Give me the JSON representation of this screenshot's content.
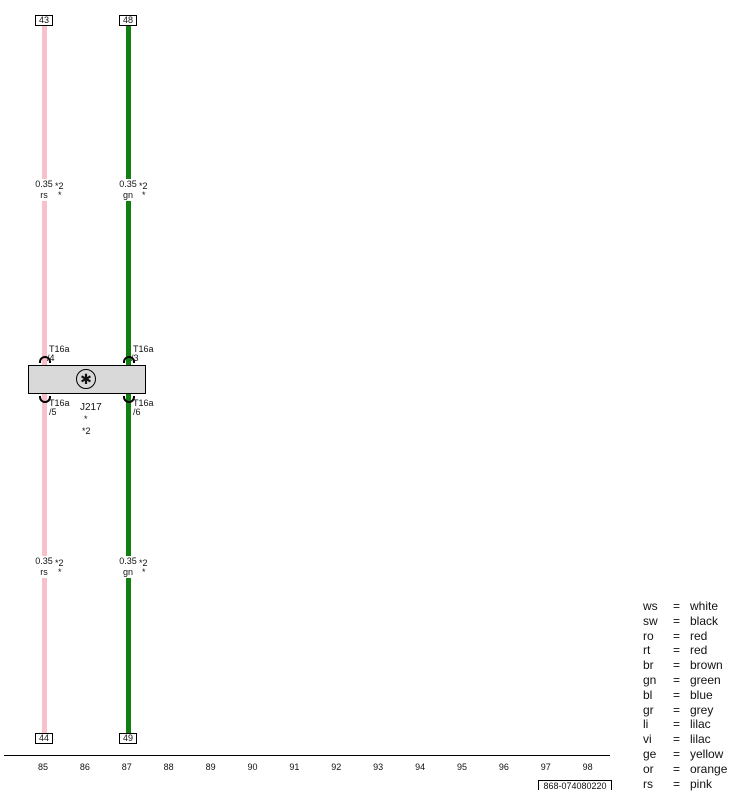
{
  "wires": [
    {
      "color": "#f7c0cb",
      "top_ref": "43",
      "bottom_ref": "44",
      "gauge": "0.35",
      "code": "rs",
      "note": "*2",
      "star": "*",
      "pin_top": "T16a",
      "pin_top_no": "/4",
      "pin_bottom": "T16a",
      "pin_bottom_no": "/5"
    },
    {
      "color": "#118011",
      "top_ref": "48",
      "bottom_ref": "49",
      "gauge": "0.35",
      "code": "gn",
      "note": "*2",
      "star": "*",
      "pin_top": "T16a",
      "pin_top_no": "/3",
      "pin_bottom": "T16a",
      "pin_bottom_no": "/6"
    }
  ],
  "component": {
    "id": "J217",
    "star": "*",
    "note": "*2",
    "fill": "#d9d9d9"
  },
  "columns": [
    "85",
    "86",
    "87",
    "88",
    "89",
    "90",
    "91",
    "92",
    "93",
    "94",
    "95",
    "96",
    "97",
    "98"
  ],
  "footer_code": "868-074080220",
  "legend": [
    {
      "abbr": "ws",
      "eq": "=",
      "name": "white"
    },
    {
      "abbr": "sw",
      "eq": "=",
      "name": "black"
    },
    {
      "abbr": "ro",
      "eq": "=",
      "name": "red"
    },
    {
      "abbr": "rt",
      "eq": "=",
      "name": "red"
    },
    {
      "abbr": "br",
      "eq": "=",
      "name": "brown"
    },
    {
      "abbr": "gn",
      "eq": "=",
      "name": "green"
    },
    {
      "abbr": "bl",
      "eq": "=",
      "name": "blue"
    },
    {
      "abbr": "gr",
      "eq": "=",
      "name": "grey"
    },
    {
      "abbr": "li",
      "eq": "=",
      "name": "lilac"
    },
    {
      "abbr": "vi",
      "eq": "=",
      "name": "lilac"
    },
    {
      "abbr": "ge",
      "eq": "=",
      "name": "yellow"
    },
    {
      "abbr": "or",
      "eq": "=",
      "name": "orange"
    },
    {
      "abbr": "rs",
      "eq": "=",
      "name": "pink"
    }
  ]
}
